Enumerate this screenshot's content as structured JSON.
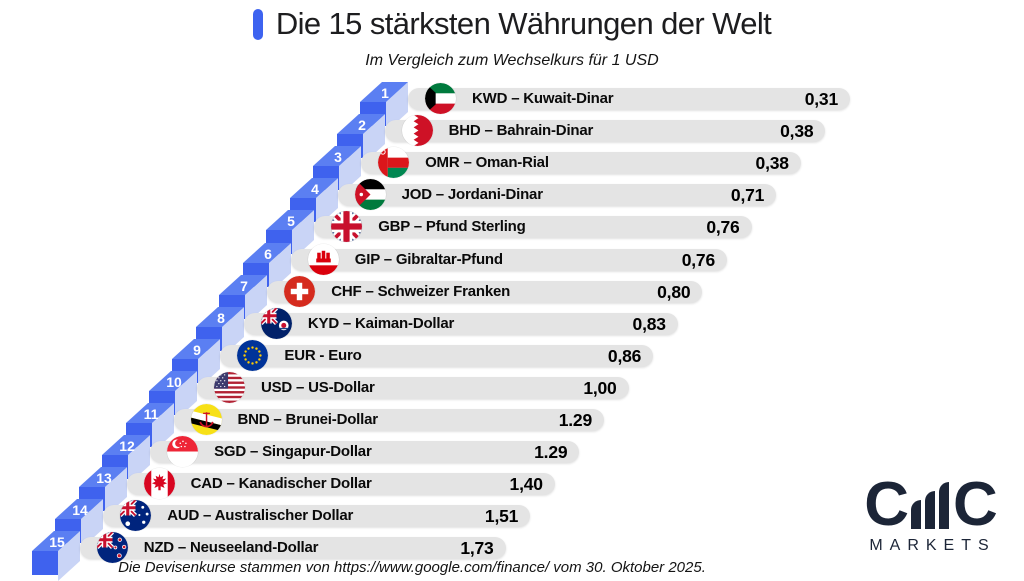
{
  "title": "Die 15 stärksten Währungen der Welt",
  "subtitle": "Im Vergleich zum Wechselkurs für 1 USD",
  "source_note": "Die Devisenkurse stammen von https://www.google.com/finance/ vom 30. Oktober 2025.",
  "logo": {
    "brand": "CMC Markets",
    "left_c": "C",
    "right_c": "C",
    "subtext": "MARKETS"
  },
  "colors": {
    "accent_blue": "#3d63f0",
    "step_front": "#3f62ee",
    "step_top": "#5b7ff2",
    "step_side": "#c9d4f6",
    "bar_bg": "#e4e4e4",
    "logo_navy": "#1c2537"
  },
  "chart_data": {
    "type": "bar",
    "orientation": "horizontal-staircase",
    "title": "Die 15 stärksten Währungen der Welt",
    "subtitle": "Im Vergleich zum Wechselkurs für 1 USD",
    "note": "Die Devisenkurse stammen von https://www.google.com/finance/ vom 30. Oktober 2025.",
    "unit": "Wechselkurs für 1 USD",
    "categories": [
      "KWD",
      "BHD",
      "OMR",
      "JOD",
      "GBP",
      "GIP",
      "CHF",
      "KYD",
      "EUR",
      "USD",
      "BND",
      "SGD",
      "CAD",
      "AUD",
      "NZD"
    ],
    "values": [
      0.31,
      0.38,
      0.38,
      0.71,
      0.76,
      0.76,
      0.8,
      0.83,
      0.86,
      1.0,
      1.29,
      1.29,
      1.4,
      1.51,
      1.73
    ],
    "rows": [
      {
        "rank": "1",
        "code": "KWD",
        "flag": "kw",
        "label": "KWD – Kuwait-Dinar",
        "value": "0,31"
      },
      {
        "rank": "2",
        "code": "BHD",
        "flag": "bh",
        "label": "BHD – Bahrain-Dinar",
        "value": "0,38"
      },
      {
        "rank": "3",
        "code": "OMR",
        "flag": "om",
        "label": "OMR – Oman-Rial",
        "value": "0,38"
      },
      {
        "rank": "4",
        "code": "JOD",
        "flag": "jo",
        "label": "JOD – Jordani-Dinar",
        "value": "0,71"
      },
      {
        "rank": "5",
        "code": "GBP",
        "flag": "gb",
        "label": "GBP – Pfund Sterling",
        "value": "0,76"
      },
      {
        "rank": "6",
        "code": "GIP",
        "flag": "gi",
        "label": "GIP – Gibraltar-Pfund",
        "value": "0,76"
      },
      {
        "rank": "7",
        "code": "CHF",
        "flag": "ch",
        "label": "CHF – Schweizer Franken",
        "value": "0,80"
      },
      {
        "rank": "8",
        "code": "KYD",
        "flag": "ky",
        "label": "KYD – Kaiman-Dollar",
        "value": "0,83"
      },
      {
        "rank": "9",
        "code": "EUR",
        "flag": "eu",
        "label": "EUR - Euro",
        "value": "0,86"
      },
      {
        "rank": "10",
        "code": "USD",
        "flag": "us",
        "label": "USD – US-Dollar",
        "value": "1,00"
      },
      {
        "rank": "11",
        "code": "BND",
        "flag": "bn",
        "label": "BND – Brunei-Dollar",
        "value": "1.29"
      },
      {
        "rank": "12",
        "code": "SGD",
        "flag": "sg",
        "label": "SGD – Singapur-Dollar",
        "value": "1.29"
      },
      {
        "rank": "13",
        "code": "CAD",
        "flag": "ca",
        "label": "CAD – Kanadischer Dollar",
        "value": "1,40"
      },
      {
        "rank": "14",
        "code": "AUD",
        "flag": "au",
        "label": "AUD – Australischer Dollar",
        "value": "1,51"
      },
      {
        "rank": "15",
        "code": "NZD",
        "flag": "nz",
        "label": "NZD – Neuseeland-Dollar",
        "value": "1,73"
      }
    ]
  }
}
